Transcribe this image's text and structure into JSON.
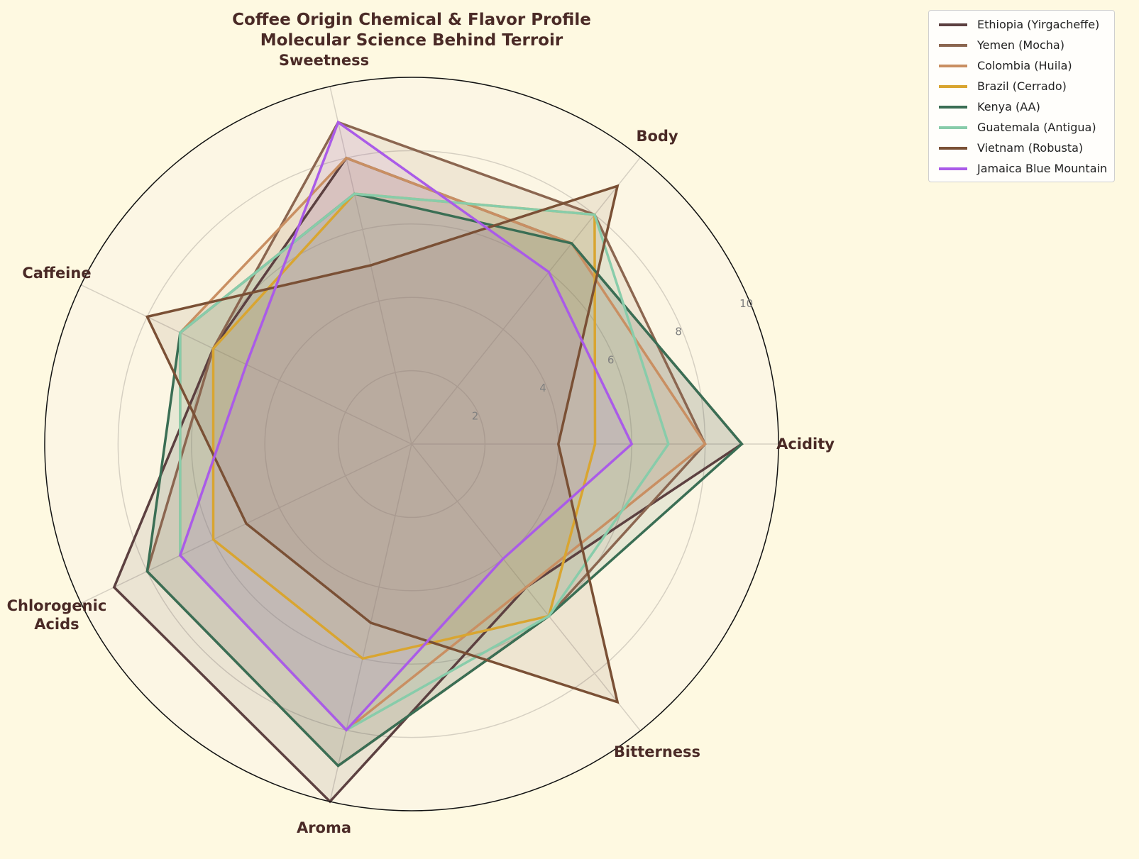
{
  "chart_data": {
    "type": "radar",
    "title": "Coffee Origin Chemical & Flavor Profile",
    "subtitle": "Molecular Science Behind Terroir",
    "categories": [
      "Acidity",
      "Body",
      "Sweetness",
      "Caffeine",
      "Chlorogenic Acids",
      "Aroma",
      "Bitterness"
    ],
    "category_label_lines": [
      [
        "Acidity"
      ],
      [
        "Body"
      ],
      [
        "Sweetness"
      ],
      [
        "Caffeine"
      ],
      [
        "Chlorogenic",
        "Acids"
      ],
      [
        "Aroma"
      ],
      [
        "Bitterness"
      ]
    ],
    "rlim": [
      0,
      10
    ],
    "rticks": [
      2,
      4,
      6,
      8,
      10
    ],
    "grid": true,
    "legend_position": "upper right outside",
    "series": [
      {
        "name": "Ethiopia (Yirgacheffe)",
        "color": "#5c4040",
        "values": [
          9,
          7,
          8,
          6,
          9,
          10,
          5
        ]
      },
      {
        "name": "Yemen (Mocha)",
        "color": "#8b6650",
        "values": [
          8,
          8,
          9,
          6,
          8,
          9,
          6
        ]
      },
      {
        "name": "Colombia (Huila)",
        "color": "#c98f62",
        "values": [
          8,
          7,
          8,
          7,
          7,
          8,
          5
        ]
      },
      {
        "name": "Brazil (Cerrado)",
        "color": "#d9a530",
        "values": [
          5,
          8,
          7,
          6,
          6,
          6,
          6
        ]
      },
      {
        "name": "Kenya (AA)",
        "color": "#3a6e54",
        "values": [
          9,
          7,
          7,
          7,
          8,
          9,
          6
        ]
      },
      {
        "name": "Guatemala (Antigua)",
        "color": "#88ccaa",
        "values": [
          7,
          8,
          7,
          7,
          7,
          8,
          6
        ]
      },
      {
        "name": "Vietnam (Robusta)",
        "color": "#7a5035",
        "values": [
          4,
          9,
          5,
          8,
          5,
          5,
          9
        ]
      },
      {
        "name": "Jamaica Blue Mountain",
        "color": "#aa5be8",
        "values": [
          6,
          6,
          9,
          5,
          7,
          8,
          4
        ]
      }
    ]
  },
  "title": {
    "line1": "Coffee Origin Chemical & Flavor Profile",
    "line2": "Molecular Science Behind Terroir"
  },
  "legend": {
    "items": [
      {
        "label": "Ethiopia (Yirgacheffe)",
        "color": "#5c4040"
      },
      {
        "label": "Yemen (Mocha)",
        "color": "#8b6650"
      },
      {
        "label": "Colombia (Huila)",
        "color": "#c98f62"
      },
      {
        "label": "Brazil (Cerrado)",
        "color": "#d9a530"
      },
      {
        "label": "Kenya (AA)",
        "color": "#3a6e54"
      },
      {
        "label": "Guatemala (Antigua)",
        "color": "#88ccaa"
      },
      {
        "label": "Vietnam (Robusta)",
        "color": "#7a5035"
      },
      {
        "label": "Jamaica Blue Mountain",
        "color": "#aa5be8"
      }
    ]
  },
  "colors": {
    "background": "#fef9e1",
    "plot_background": "#fcf6e4",
    "text": "#4a2a26"
  }
}
